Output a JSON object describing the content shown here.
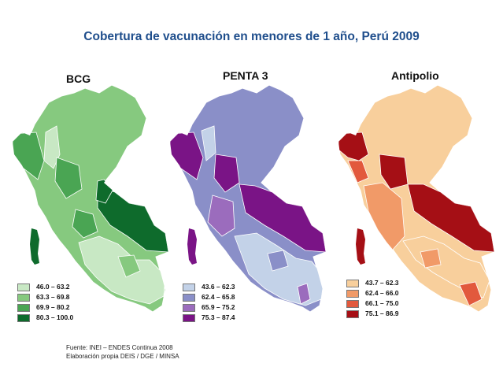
{
  "title": "Cobertura de vacunación en menores de 1 año, Perú 2009",
  "maps": [
    {
      "title": "BCG",
      "legend": [
        {
          "label": "46.0 – 63.2",
          "color": "#c8e8c4"
        },
        {
          "label": "63.3 – 69.8",
          "color": "#86c97f"
        },
        {
          "label": "69.9 – 80.2",
          "color": "#4aa553"
        },
        {
          "label": "80.3 – 100.0",
          "color": "#0e6b2c"
        }
      ]
    },
    {
      "title": "PENTA 3",
      "legend": [
        {
          "label": "43.6 – 62.3",
          "color": "#c3d2e8"
        },
        {
          "label": "62.4 – 65.8",
          "color": "#8a8fc8"
        },
        {
          "label": "65.9 – 75.2",
          "color": "#9b6cbd"
        },
        {
          "label": "75.3 – 87.4",
          "color": "#7a1486"
        }
      ]
    },
    {
      "title": "Antipolio",
      "legend": [
        {
          "label": "43.7 – 62.3",
          "color": "#f8cf9c"
        },
        {
          "label": "62.4 – 66.0",
          "color": "#f19a68"
        },
        {
          "label": "66.1 – 75.0",
          "color": "#e2593d"
        },
        {
          "label": "75.1 – 86.9",
          "color": "#a50f15"
        }
      ]
    }
  ],
  "source": {
    "line1": "Fuente: INEI – ENDES Continua 2008",
    "line2": "Elaboración propia DEIS / DGE / MINSA"
  }
}
